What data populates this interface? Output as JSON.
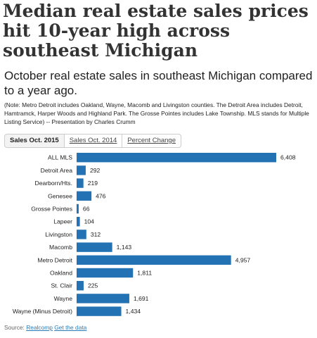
{
  "headline": "Median real estate sales prices hit 10-year high across southeast Michigan",
  "subhead": "October real estate sales in southeast Michigan compared to a year ago.",
  "note": "(Note: Metro Detroit includes Oakland, Wayne, Macomb and Livingston counties. The Detroit Area includes Detroit, Hamtramck, Harper Woods and Highland Park. The Grosse Pointes includes Lake Township. MLS stands for Multiple Listing Service) -- Presentation by Charles Crumm",
  "tabs": [
    {
      "label": "Sales Oct. 2015",
      "active": true
    },
    {
      "label": "Sales Oct. 2014",
      "active": false
    },
    {
      "label": "Percent Change",
      "active": false
    }
  ],
  "colors": {
    "bar": "#2272b4"
  },
  "chart_data": {
    "type": "bar",
    "orientation": "horizontal",
    "categories": [
      "ALL MLS",
      "Detroit Area",
      "Dearborn/Hts.",
      "Genesee",
      "Grosse Pointes",
      "Lapeer",
      "Livingston",
      "Macomb",
      "Metro Detroit",
      "Oakland",
      "St. Clair",
      "Wayne",
      "Wayne (Minus Detroit)"
    ],
    "values": [
      6408,
      292,
      219,
      476,
      66,
      104,
      312,
      1143,
      4957,
      1811,
      225,
      1691,
      1434
    ],
    "value_labels": [
      "6,408",
      "292",
      "219",
      "476",
      "66",
      "104",
      "312",
      "1,143",
      "4,957",
      "1,811",
      "225",
      "1,691",
      "1,434"
    ],
    "xlim": [
      0,
      6408
    ],
    "grid": false,
    "legend": "none"
  },
  "source": {
    "label": "Source:",
    "link1": "Realcomp",
    "link2": "Get the data"
  }
}
